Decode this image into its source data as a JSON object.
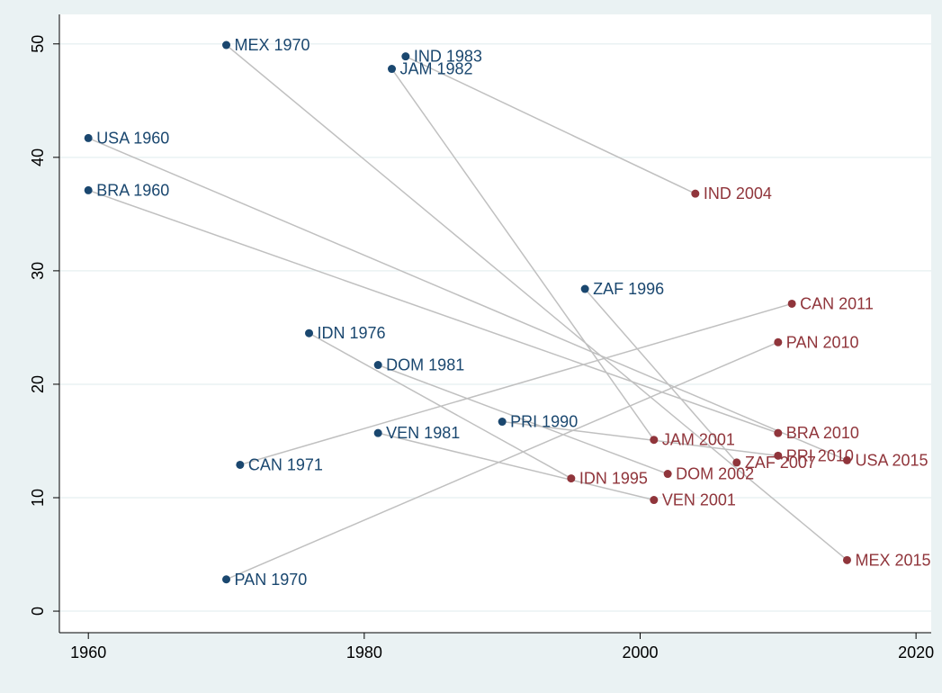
{
  "chart_data": {
    "type": "scatter",
    "xlim": [
      1957.9,
      2021.1
    ],
    "ylim": [
      -1.9,
      52.6
    ],
    "xticks": [
      1960,
      1980,
      2000,
      2020
    ],
    "yticks": [
      0,
      10,
      20,
      30,
      40,
      50
    ],
    "grid": true,
    "series": [
      {
        "color": "#1a476f",
        "labels": [
          "MEX 1970",
          "IND 1983",
          "JAM 1982",
          "USA 1960",
          "BRA 1960",
          "ZAF 1996",
          "IDN 1976",
          "DOM 1981",
          "PRI 1990",
          "VEN 1981",
          "CAN 1971",
          "PAN 1970"
        ],
        "x": [
          1970,
          1983,
          1982,
          1960,
          1960,
          1996,
          1976,
          1981,
          1990,
          1981,
          1971,
          1970
        ],
        "values": [
          49.9,
          48.9,
          47.8,
          41.7,
          37.1,
          28.4,
          24.5,
          21.7,
          16.7,
          15.7,
          12.9,
          2.8
        ]
      },
      {
        "color": "#90353b",
        "labels": [
          "MEX 2015",
          "IND 2004",
          "JAM 2001",
          "USA 2015",
          "BRA 2010",
          "ZAF 2007",
          "IDN 1995",
          "DOM 2002",
          "PRI 2010",
          "VEN 2001",
          "CAN 2011",
          "PAN 2010"
        ],
        "x": [
          2015,
          2004,
          2001,
          2015,
          2010,
          2007,
          1995,
          2002,
          2010,
          2001,
          2011,
          2010
        ],
        "values": [
          4.5,
          36.8,
          15.1,
          13.3,
          15.7,
          13.1,
          11.7,
          12.1,
          13.7,
          9.8,
          27.1,
          23.7
        ]
      }
    ],
    "line_color": "#c0c0c0"
  }
}
